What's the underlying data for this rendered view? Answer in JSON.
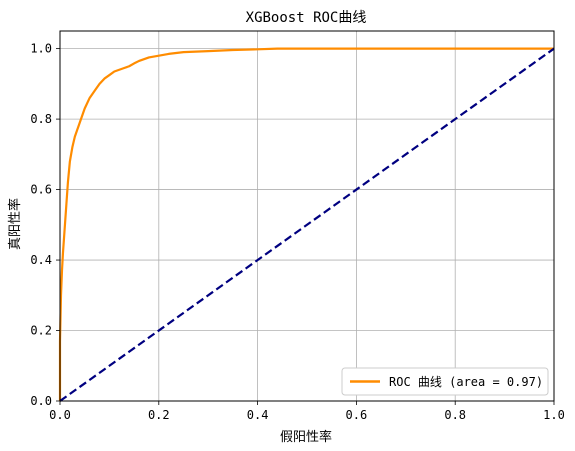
{
  "chart_data": {
    "type": "line",
    "title": "XGBoost ROC曲线",
    "xlabel": "假阳性率",
    "ylabel": "真阳性率",
    "xlim": [
      0.0,
      1.0
    ],
    "ylim": [
      0.0,
      1.05
    ],
    "xticks": [
      "0.0",
      "0.2",
      "0.4",
      "0.6",
      "0.8",
      "1.0"
    ],
    "yticks": [
      "0.0",
      "0.2",
      "0.4",
      "0.6",
      "0.8",
      "1.0"
    ],
    "grid": true,
    "legend_position": "lower-right",
    "series": [
      {
        "name": "ROC 曲线 (area = 0.97)",
        "color": "#ff8c00",
        "style": "solid",
        "x": [
          0.0,
          0.0,
          0.002,
          0.004,
          0.006,
          0.008,
          0.01,
          0.013,
          0.016,
          0.02,
          0.025,
          0.03,
          0.035,
          0.04,
          0.05,
          0.06,
          0.07,
          0.08,
          0.09,
          0.1,
          0.11,
          0.12,
          0.13,
          0.14,
          0.15,
          0.16,
          0.17,
          0.18,
          0.2,
          0.22,
          0.25,
          0.3,
          0.35,
          0.4,
          0.44,
          0.5,
          0.6,
          0.7,
          0.8,
          0.9,
          1.0
        ],
        "y": [
          0.0,
          0.17,
          0.3,
          0.37,
          0.42,
          0.46,
          0.5,
          0.56,
          0.62,
          0.68,
          0.72,
          0.75,
          0.77,
          0.79,
          0.83,
          0.86,
          0.88,
          0.9,
          0.915,
          0.925,
          0.935,
          0.94,
          0.945,
          0.95,
          0.958,
          0.965,
          0.97,
          0.975,
          0.98,
          0.985,
          0.99,
          0.993,
          0.996,
          0.998,
          1.0,
          1.0,
          1.0,
          1.0,
          1.0,
          1.0,
          1.0
        ]
      },
      {
        "name": "",
        "color": "#000080",
        "style": "dashed",
        "x": [
          0.0,
          1.0
        ],
        "y": [
          0.0,
          1.0
        ]
      }
    ]
  }
}
